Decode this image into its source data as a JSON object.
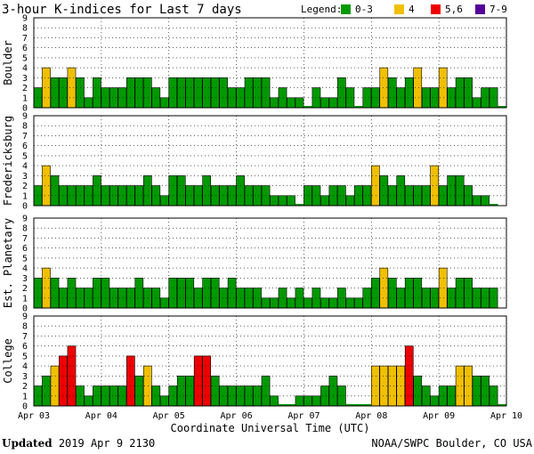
{
  "chart_data": {
    "type": "bar",
    "title": "3-hour K-indices for Last 7 days",
    "legend": {
      "label": "Legend:",
      "entries": [
        {
          "label": "0-3",
          "color": "#009900"
        },
        {
          "label": "4",
          "color": "#f0c000"
        },
        {
          "label": "5,6",
          "color": "#ee0000"
        },
        {
          "label": "7-9",
          "color": "#550099"
        }
      ]
    },
    "xlabel": "Coordinate Universal Time (UTC)",
    "x_tick_labels": [
      "Apr 03",
      "Apr 04",
      "Apr 05",
      "Apr 06",
      "Apr 07",
      "Apr 08",
      "Apr 09",
      "Apr 10"
    ],
    "y_tick_labels": [
      "0",
      "1",
      "2",
      "3",
      "4",
      "5",
      "6",
      "7",
      "8",
      "9"
    ],
    "ylim": [
      0,
      9
    ],
    "bars_per_day": 8,
    "panels": [
      {
        "name": "Boulder",
        "values": [
          2,
          4,
          3,
          3,
          4,
          3,
          1,
          3,
          2,
          2,
          2,
          3,
          3,
          3,
          2,
          1,
          3,
          3,
          3,
          3,
          3,
          3,
          3,
          2,
          2,
          3,
          3,
          3,
          1,
          2,
          1,
          1,
          0,
          2,
          1,
          1,
          3,
          2,
          0,
          2,
          2,
          4,
          3,
          2,
          3,
          4,
          2,
          2,
          4,
          2,
          3,
          3,
          1,
          2,
          2,
          0
        ]
      },
      {
        "name": "Fredericksburg",
        "values": [
          2,
          4,
          3,
          2,
          2,
          2,
          2,
          3,
          2,
          2,
          2,
          2,
          2,
          3,
          2,
          1,
          3,
          3,
          2,
          2,
          3,
          2,
          2,
          2,
          3,
          2,
          2,
          2,
          1,
          1,
          1,
          0,
          2,
          2,
          1,
          2,
          2,
          1,
          2,
          2,
          4,
          3,
          2,
          3,
          2,
          2,
          2,
          4,
          2,
          3,
          3,
          2,
          1,
          1,
          0
        ]
      },
      {
        "name": "Est. Planetary",
        "values": [
          3,
          4,
          3,
          2,
          3,
          2,
          2,
          3,
          3,
          2,
          2,
          2,
          3,
          2,
          2,
          1,
          3,
          3,
          3,
          2,
          3,
          3,
          2,
          3,
          2,
          2,
          2,
          1,
          1,
          2,
          1,
          2,
          1,
          2,
          1,
          1,
          2,
          1,
          1,
          2,
          3,
          4,
          3,
          2,
          3,
          3,
          2,
          2,
          4,
          2,
          3,
          3,
          2,
          2,
          2
        ]
      },
      {
        "name": "College",
        "values": [
          2,
          3,
          4,
          5,
          6,
          2,
          1,
          2,
          2,
          2,
          2,
          5,
          3,
          4,
          2,
          1,
          2,
          3,
          3,
          5,
          5,
          3,
          2,
          2,
          2,
          2,
          2,
          3,
          1,
          0,
          0,
          1,
          1,
          1,
          2,
          3,
          2,
          0,
          0,
          0,
          4,
          4,
          4,
          4,
          6,
          3,
          2,
          1,
          2,
          2,
          4,
          4,
          3,
          3,
          2,
          0
        ]
      }
    ]
  },
  "footer": {
    "updated_label": "Updated",
    "timestamp": "2019 Apr  9 2130",
    "source": "NOAA/SWPC Boulder, CO USA"
  }
}
